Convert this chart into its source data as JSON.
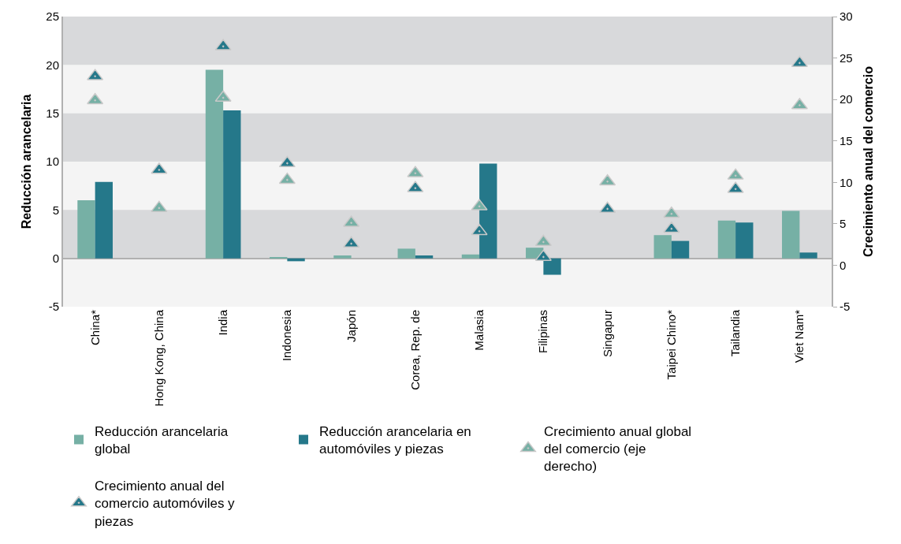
{
  "chart_data": {
    "type": "bar",
    "ylabel": "Reducción arancelaria",
    "y2label": "Crecimiento anual del comercio",
    "categories": [
      "China*",
      "Hong Kong, China",
      "India",
      "Indonesia",
      "Japón",
      "Corea, Rep. de",
      "Malasia",
      "Filipinas",
      "Singapur",
      "Taipei Chino*",
      "Tailandia",
      "Viet Nam*"
    ],
    "series": [
      {
        "name": "Reducción arancelaria global",
        "color": "#76b0a5",
        "values": [
          6.0,
          null,
          19.5,
          0.1,
          0.3,
          1.0,
          0.4,
          1.1,
          null,
          2.4,
          3.9,
          4.9
        ]
      },
      {
        "name": "Reducción arancelaria en automóviles y piezas",
        "color": "#25788a",
        "values": [
          7.9,
          null,
          15.3,
          -0.3,
          0.0,
          0.3,
          9.8,
          -1.7,
          null,
          1.8,
          3.7,
          0.6
        ]
      },
      {
        "name": "Crecimiento anual global del comercio (eje derecho)",
        "type": "scatter",
        "axis": "y2",
        "marker": "triangle",
        "color": "#76b0a5",
        "values": [
          19.9,
          6.9,
          20.2,
          10.3,
          5.1,
          11.1,
          7.1,
          2.8,
          10.1,
          6.2,
          10.8,
          19.3
        ]
      },
      {
        "name": "Crecimiento anual del comercio automóviles y piezas",
        "type": "scatter",
        "axis": "y2",
        "marker": "triangle",
        "color": "#25788a",
        "values": [
          22.8,
          11.5,
          26.4,
          12.3,
          2.6,
          9.3,
          4.1,
          1.0,
          6.8,
          4.4,
          9.2,
          24.4
        ]
      }
    ],
    "ylim": [
      -5,
      25
    ],
    "yticks": [
      -5,
      0,
      5,
      10,
      15,
      20,
      25
    ],
    "y2lim": [
      -5,
      30
    ],
    "y2ticks": [
      -5,
      0,
      5,
      10,
      15,
      20,
      25,
      30
    ],
    "bands": [
      {
        "axis": "y",
        "from": 0,
        "to": 5,
        "color": "#d8d9db"
      },
      {
        "axis": "y",
        "from": 10,
        "to": 15,
        "color": "#d8d9db"
      },
      {
        "axis": "y",
        "from": 20,
        "to": 25,
        "color": "#d8d9db"
      }
    ],
    "legend": "bottom"
  }
}
